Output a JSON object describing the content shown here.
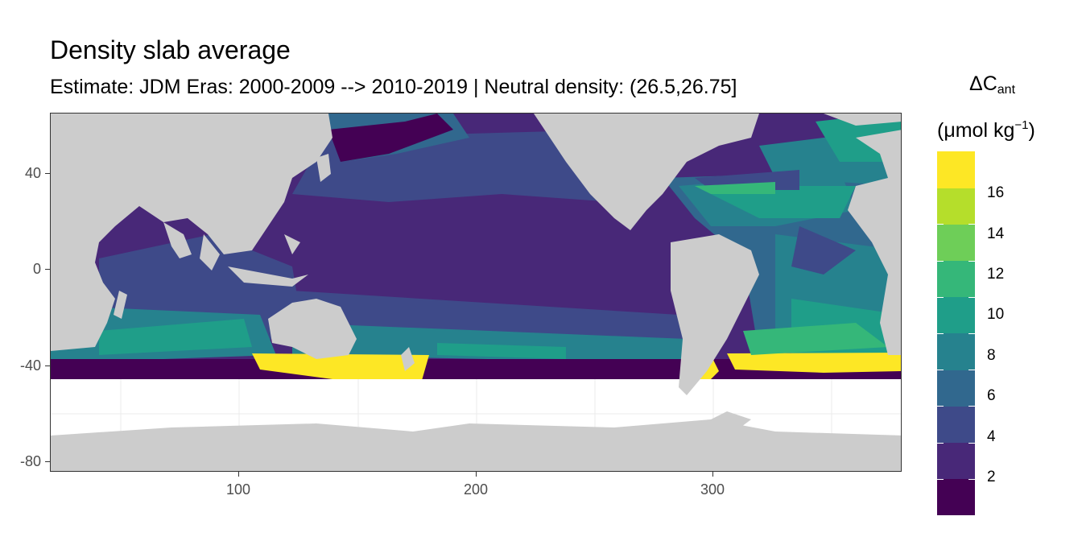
{
  "title": "Density slab average",
  "subtitle": "Estimate: JDM Eras: 2000-2009 --> 2010-2019 | Neutral density: (26.5,26.75]",
  "legend": {
    "title_symbol": "ΔC",
    "title_subscript": "ant",
    "unit_open": "(μmol kg",
    "unit_sup": "−1",
    "unit_close": ")",
    "colors": [
      "#440154",
      "#482878",
      "#3e4a89",
      "#31688e",
      "#26828e",
      "#1f9e89",
      "#35b779",
      "#6ece58",
      "#b5de2b",
      "#fde725"
    ],
    "labels": [
      "2",
      "4",
      "6",
      "8",
      "10",
      "12",
      "14",
      "16"
    ]
  },
  "axes": {
    "y_ticks": [
      "40",
      "0",
      "-40",
      "-80"
    ],
    "x_ticks": [
      "100",
      "200",
      "300"
    ]
  },
  "colors": {
    "land": "#cccccc",
    "no_data": "#ffffff",
    "grid": "#ebebeb",
    "panel_border": "#333333"
  }
}
